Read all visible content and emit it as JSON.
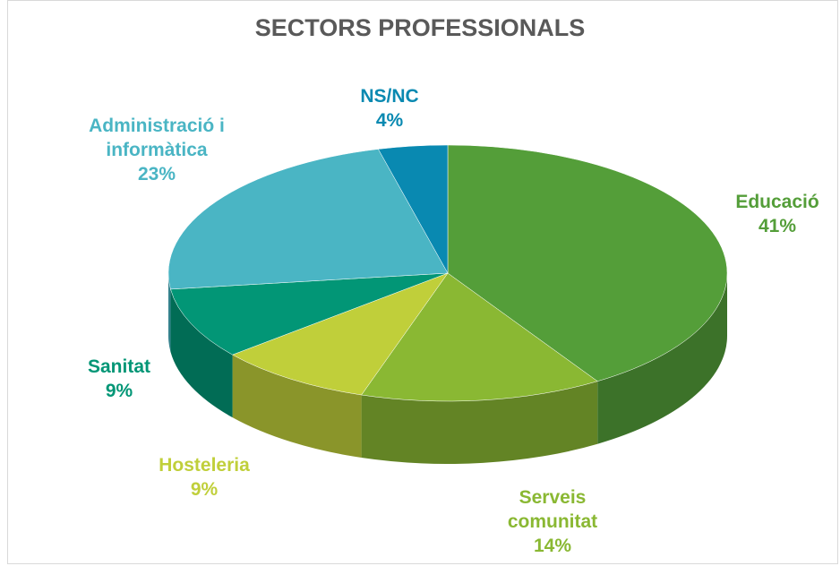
{
  "chart_data": {
    "type": "pie3d",
    "title": "SECTORS PROFESSIONALS",
    "categories": [
      "Educació",
      "Serveis comunitat",
      "Hosteleria",
      "Sanitat",
      "Administració i informàtica",
      "NS/NC"
    ],
    "values": [
      41,
      14,
      9,
      9,
      23,
      4
    ],
    "value_labels": [
      "41%",
      "14%",
      "9%",
      "9%",
      "23%",
      "4%"
    ],
    "colors": [
      "#549e39",
      "#8ab833",
      "#c0cf3a",
      "#029676",
      "#4ab5c4",
      "#0989b1"
    ]
  }
}
